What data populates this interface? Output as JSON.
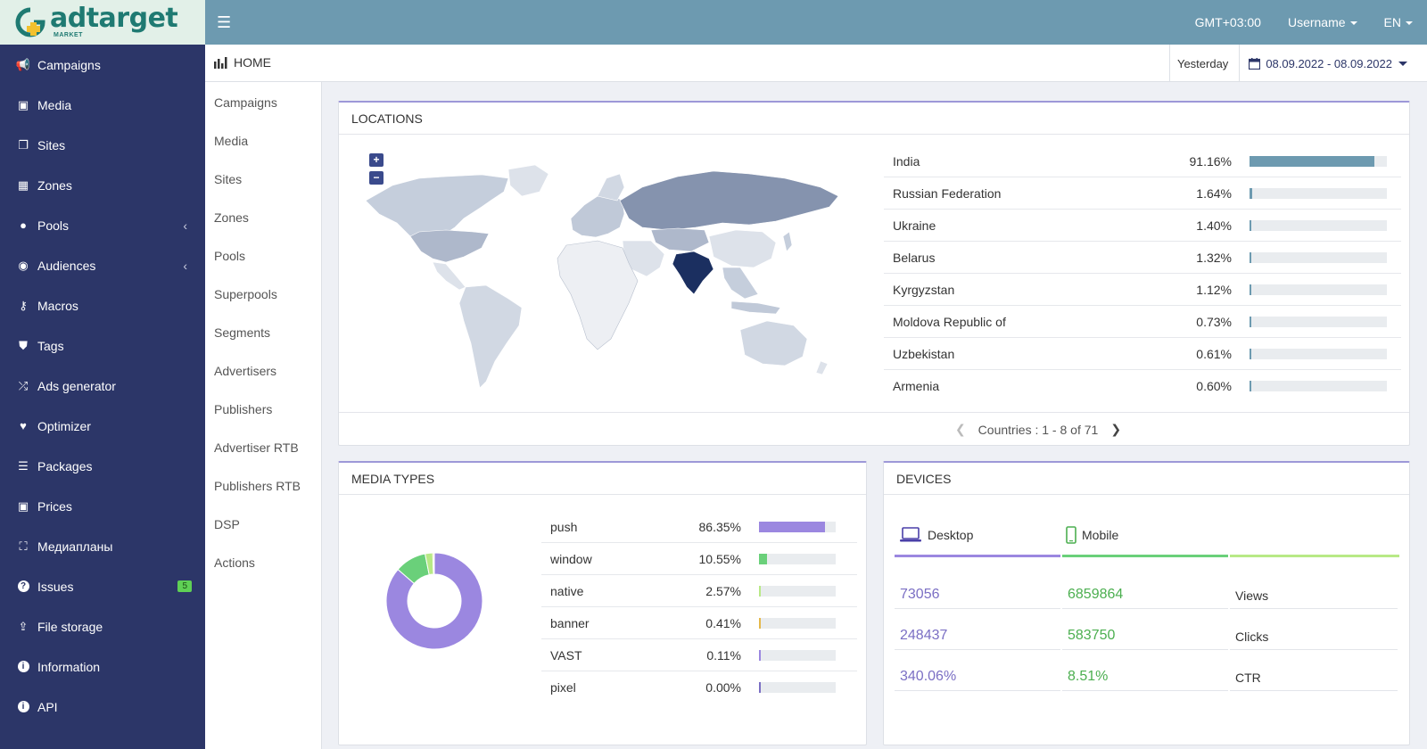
{
  "brand": {
    "name": "adtarget",
    "sub": "MARKET"
  },
  "sidebar": {
    "items": [
      {
        "label": "Campaigns",
        "icon": "bullhorn-icon"
      },
      {
        "label": "Media",
        "icon": "image-icon"
      },
      {
        "label": "Sites",
        "icon": "sites-icon"
      },
      {
        "label": "Zones",
        "icon": "grid-icon"
      },
      {
        "label": "Pools",
        "icon": "circle-icon",
        "chevron": true
      },
      {
        "label": "Audiences",
        "icon": "user-circle-icon",
        "chevron": true
      },
      {
        "label": "Macros",
        "icon": "key-icon"
      },
      {
        "label": "Tags",
        "icon": "tags-icon"
      },
      {
        "label": "Ads generator",
        "icon": "shuffle-icon"
      },
      {
        "label": "Optimizer",
        "icon": "heartbeat-icon"
      },
      {
        "label": "Packages",
        "icon": "database-icon"
      },
      {
        "label": "Prices",
        "icon": "money-icon"
      },
      {
        "label": "Медиапланы",
        "icon": "map-icon"
      },
      {
        "label": "Issues",
        "icon": "question-icon",
        "badge": "5"
      },
      {
        "label": "File storage",
        "icon": "upload-icon"
      },
      {
        "label": "Information",
        "icon": "info-icon"
      },
      {
        "label": "API",
        "icon": "info-icon"
      }
    ]
  },
  "topbar": {
    "timezone": "GMT+03:00",
    "username": "Username",
    "language": "EN"
  },
  "header": {
    "title": "HOME",
    "date_preset": "Yesterday",
    "date_range": "08.09.2022 - 08.09.2022"
  },
  "subnav": {
    "items": [
      "Campaigns",
      "Media",
      "Sites",
      "Zones",
      "Pools",
      "Superpools",
      "Segments",
      "Advertisers",
      "Publishers",
      "Advertiser RTB",
      "Publishers RTB",
      "DSP",
      "Actions"
    ]
  },
  "locations": {
    "title": "LOCATIONS",
    "rows": [
      {
        "name": "India",
        "pct": "91.16%",
        "value": 91.16
      },
      {
        "name": "Russian Federation",
        "pct": "1.64%",
        "value": 1.64
      },
      {
        "name": "Ukraine",
        "pct": "1.40%",
        "value": 1.4
      },
      {
        "name": "Belarus",
        "pct": "1.32%",
        "value": 1.32
      },
      {
        "name": "Kyrgyzstan",
        "pct": "1.12%",
        "value": 1.12
      },
      {
        "name": "Moldova Republic of",
        "pct": "0.73%",
        "value": 0.73
      },
      {
        "name": "Uzbekistan",
        "pct": "0.61%",
        "value": 0.61
      },
      {
        "name": "Armenia",
        "pct": "0.60%",
        "value": 0.6
      }
    ],
    "pager": "Countries : 1 - 8 of 71",
    "bar_color": "#6d9ab0"
  },
  "media_types": {
    "title": "MEDIA TYPES",
    "rows": [
      {
        "name": "push",
        "pct": "86.35%",
        "value": 86.35,
        "color": "#9b87e0"
      },
      {
        "name": "window",
        "pct": "10.55%",
        "value": 10.55,
        "color": "#6ad07a"
      },
      {
        "name": "native",
        "pct": "2.57%",
        "value": 2.57,
        "color": "#b8e986"
      },
      {
        "name": "banner",
        "pct": "0.41%",
        "value": 0.41,
        "color": "#e5b84a"
      },
      {
        "name": "VAST",
        "pct": "0.11%",
        "value": 0.11,
        "color": "#9b87e0"
      },
      {
        "name": "pixel",
        "pct": "0.00%",
        "value": 0.0,
        "color": "#7b6fc4"
      }
    ]
  },
  "devices": {
    "title": "DEVICES",
    "tabs": [
      {
        "label": "Desktop",
        "color": "#7b6fc4"
      },
      {
        "label": "Mobile",
        "color": "#4caf50"
      }
    ],
    "rows": [
      {
        "desktop": "73056",
        "mobile": "6859864",
        "label": "Views"
      },
      {
        "desktop": "248437",
        "mobile": "583750",
        "label": "Clicks"
      },
      {
        "desktop": "340.06%",
        "mobile": "8.51%",
        "label": "CTR"
      }
    ]
  }
}
